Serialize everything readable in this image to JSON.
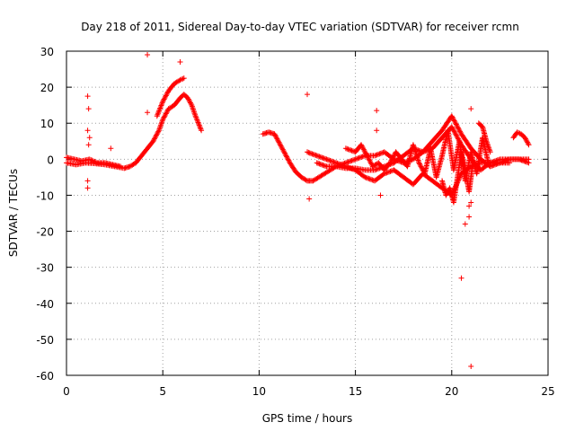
{
  "chart_data": {
    "type": "scatter",
    "title": "Day 218 of 2011, Sidereal Day-to-day VTEC variation (SDTVAR) for receiver rcmn",
    "xlabel": "GPS time / hours",
    "ylabel": "SDTVAR / TECUs",
    "xlim": [
      0,
      25
    ],
    "ylim": [
      -60,
      30
    ],
    "xticks": [
      0,
      5,
      10,
      15,
      20,
      25
    ],
    "yticks": [
      30,
      20,
      10,
      0,
      -10,
      -20,
      -30,
      -40,
      -50,
      -60
    ],
    "grid": true,
    "marker": "+",
    "colors": {
      "marker": "#ff0000",
      "grid": "#a0a0a0",
      "axis": "#000000"
    },
    "series": [
      {
        "name": "SDTVAR",
        "segments": [
          {
            "x": [
              0.0,
              0.5,
              1.0,
              1.5,
              2.0,
              2.5,
              3.0,
              3.3,
              3.6,
              3.9,
              4.2,
              4.5,
              4.8,
              5.0,
              5.3,
              5.6,
              5.9,
              6.1,
              6.3,
              6.5,
              6.7,
              7.0
            ],
            "y": [
              -1,
              -1.5,
              -1,
              -1.2,
              -1.5,
              -2.0,
              -2.5,
              -2.0,
              -1.0,
              1,
              3,
              5,
              8,
              11,
              14,
              15,
              17,
              18,
              17,
              15,
              12,
              8
            ]
          },
          {
            "x": [
              4.7,
              5.0,
              5.3,
              5.6,
              5.9,
              6.1
            ],
            "y": [
              12,
              16,
              19,
              21,
              22,
              22.5
            ]
          },
          {
            "x": [
              0.0,
              0.4,
              0.8,
              1.2,
              1.6,
              2.0,
              2.4,
              2.8
            ],
            "y": [
              0.5,
              0,
              -0.5,
              0,
              -1,
              -1,
              -1.5,
              -2
            ]
          },
          {
            "x": [
              10.2,
              10.5,
              10.8,
              11.0,
              11.3,
              11.6,
              11.9,
              12.2,
              12.5,
              12.8,
              13.1,
              13.4,
              13.7,
              14.0,
              14.5,
              15.0,
              15.5,
              16.0,
              16.5,
              17.0,
              17.5,
              18.0,
              18.5,
              19.0,
              19.5,
              20.0,
              20.5,
              21.0,
              21.5,
              22.0,
              22.5,
              23.0,
              23.5,
              24.0
            ],
            "y": [
              7,
              7.5,
              7,
              5,
              2,
              -1,
              -3.5,
              -5,
              -6,
              -6,
              -5,
              -4,
              -3,
              -2,
              -1,
              0,
              1,
              1,
              2,
              0,
              -1,
              0,
              2,
              3,
              6,
              9,
              4,
              0,
              -3,
              -1,
              0,
              0,
              0,
              0
            ]
          },
          {
            "x": [
              12.5,
              13.0,
              13.5,
              14.0,
              14.5,
              15.0,
              15.5,
              16.0,
              16.5,
              17.0,
              17.5,
              18.0,
              18.5,
              19.0,
              19.5,
              20.0,
              20.5,
              21.0,
              21.5,
              22.0,
              22.5,
              23.0,
              23.5,
              24.0
            ],
            "y": [
              2,
              1,
              0,
              -1,
              -2,
              -3,
              -5,
              -6,
              -4,
              -3,
              -5,
              -7,
              -4,
              -6,
              -8,
              -10,
              -4,
              -2,
              -1,
              -1,
              -1,
              0,
              0,
              -1
            ]
          },
          {
            "x": [
              13.0,
              13.5,
              14.0,
              14.5,
              15.0,
              15.5,
              16.0,
              16.5,
              17.0,
              17.5,
              18.0,
              18.5,
              19.0,
              19.5,
              20.0,
              20.5,
              21.0,
              21.5,
              22.0,
              22.5,
              23.0
            ],
            "y": [
              -1,
              -2,
              -2,
              -2.5,
              -2.5,
              -3,
              -3,
              -2,
              -1,
              1,
              3,
              2,
              5,
              8,
              12,
              7,
              3,
              0,
              -2,
              -1,
              -1
            ]
          },
          {
            "x": [
              14.5,
              15.0,
              15.3,
              15.6,
              15.9,
              16.2,
              16.5,
              16.8,
              17.1,
              17.4,
              17.7,
              18.0,
              18.3,
              18.6,
              18.9,
              19.2,
              19.5,
              19.8,
              20.1,
              20.4,
              20.7,
              21.0,
              21.3,
              21.6,
              21.9
            ],
            "y": [
              3,
              2,
              4,
              1,
              -2,
              -1,
              -3,
              -1,
              2,
              0,
              -2,
              4,
              -1,
              -4,
              3,
              -5,
              1,
              8,
              -3,
              5,
              -6,
              2,
              -4,
              6,
              -1
            ]
          },
          {
            "x": [
              19.5,
              19.7,
              19.9,
              20.1,
              20.3,
              20.5,
              20.7,
              20.9,
              21.1
            ],
            "y": [
              -6,
              -10,
              -8,
              -12,
              -5,
              2,
              -3,
              -9,
              -1
            ]
          },
          {
            "x": [
              21.4,
              21.6,
              21.8,
              22.0
            ],
            "y": [
              10,
              9,
              5,
              2
            ]
          },
          {
            "x": [
              23.2,
              23.4,
              23.6,
              23.8,
              24.0
            ],
            "y": [
              6,
              7.5,
              7,
              6,
              4
            ]
          }
        ],
        "outliers": {
          "x": [
            1.1,
            1.15,
            1.1,
            1.2,
            1.15,
            1.1,
            1.1,
            2.3,
            4.2,
            4.2,
            5.9,
            12.5,
            12.6,
            16.1,
            16.1,
            16.3,
            20.5,
            20.7,
            20.9,
            21.0,
            20.9,
            21.0,
            21.0
          ],
          "y": [
            17.5,
            14,
            8,
            6,
            4,
            -6,
            -8,
            3,
            29,
            13,
            27,
            18,
            -11,
            13.5,
            8,
            -10,
            -33,
            -18,
            -13,
            -12,
            -16,
            14,
            -57.5
          ]
        }
      }
    ]
  }
}
